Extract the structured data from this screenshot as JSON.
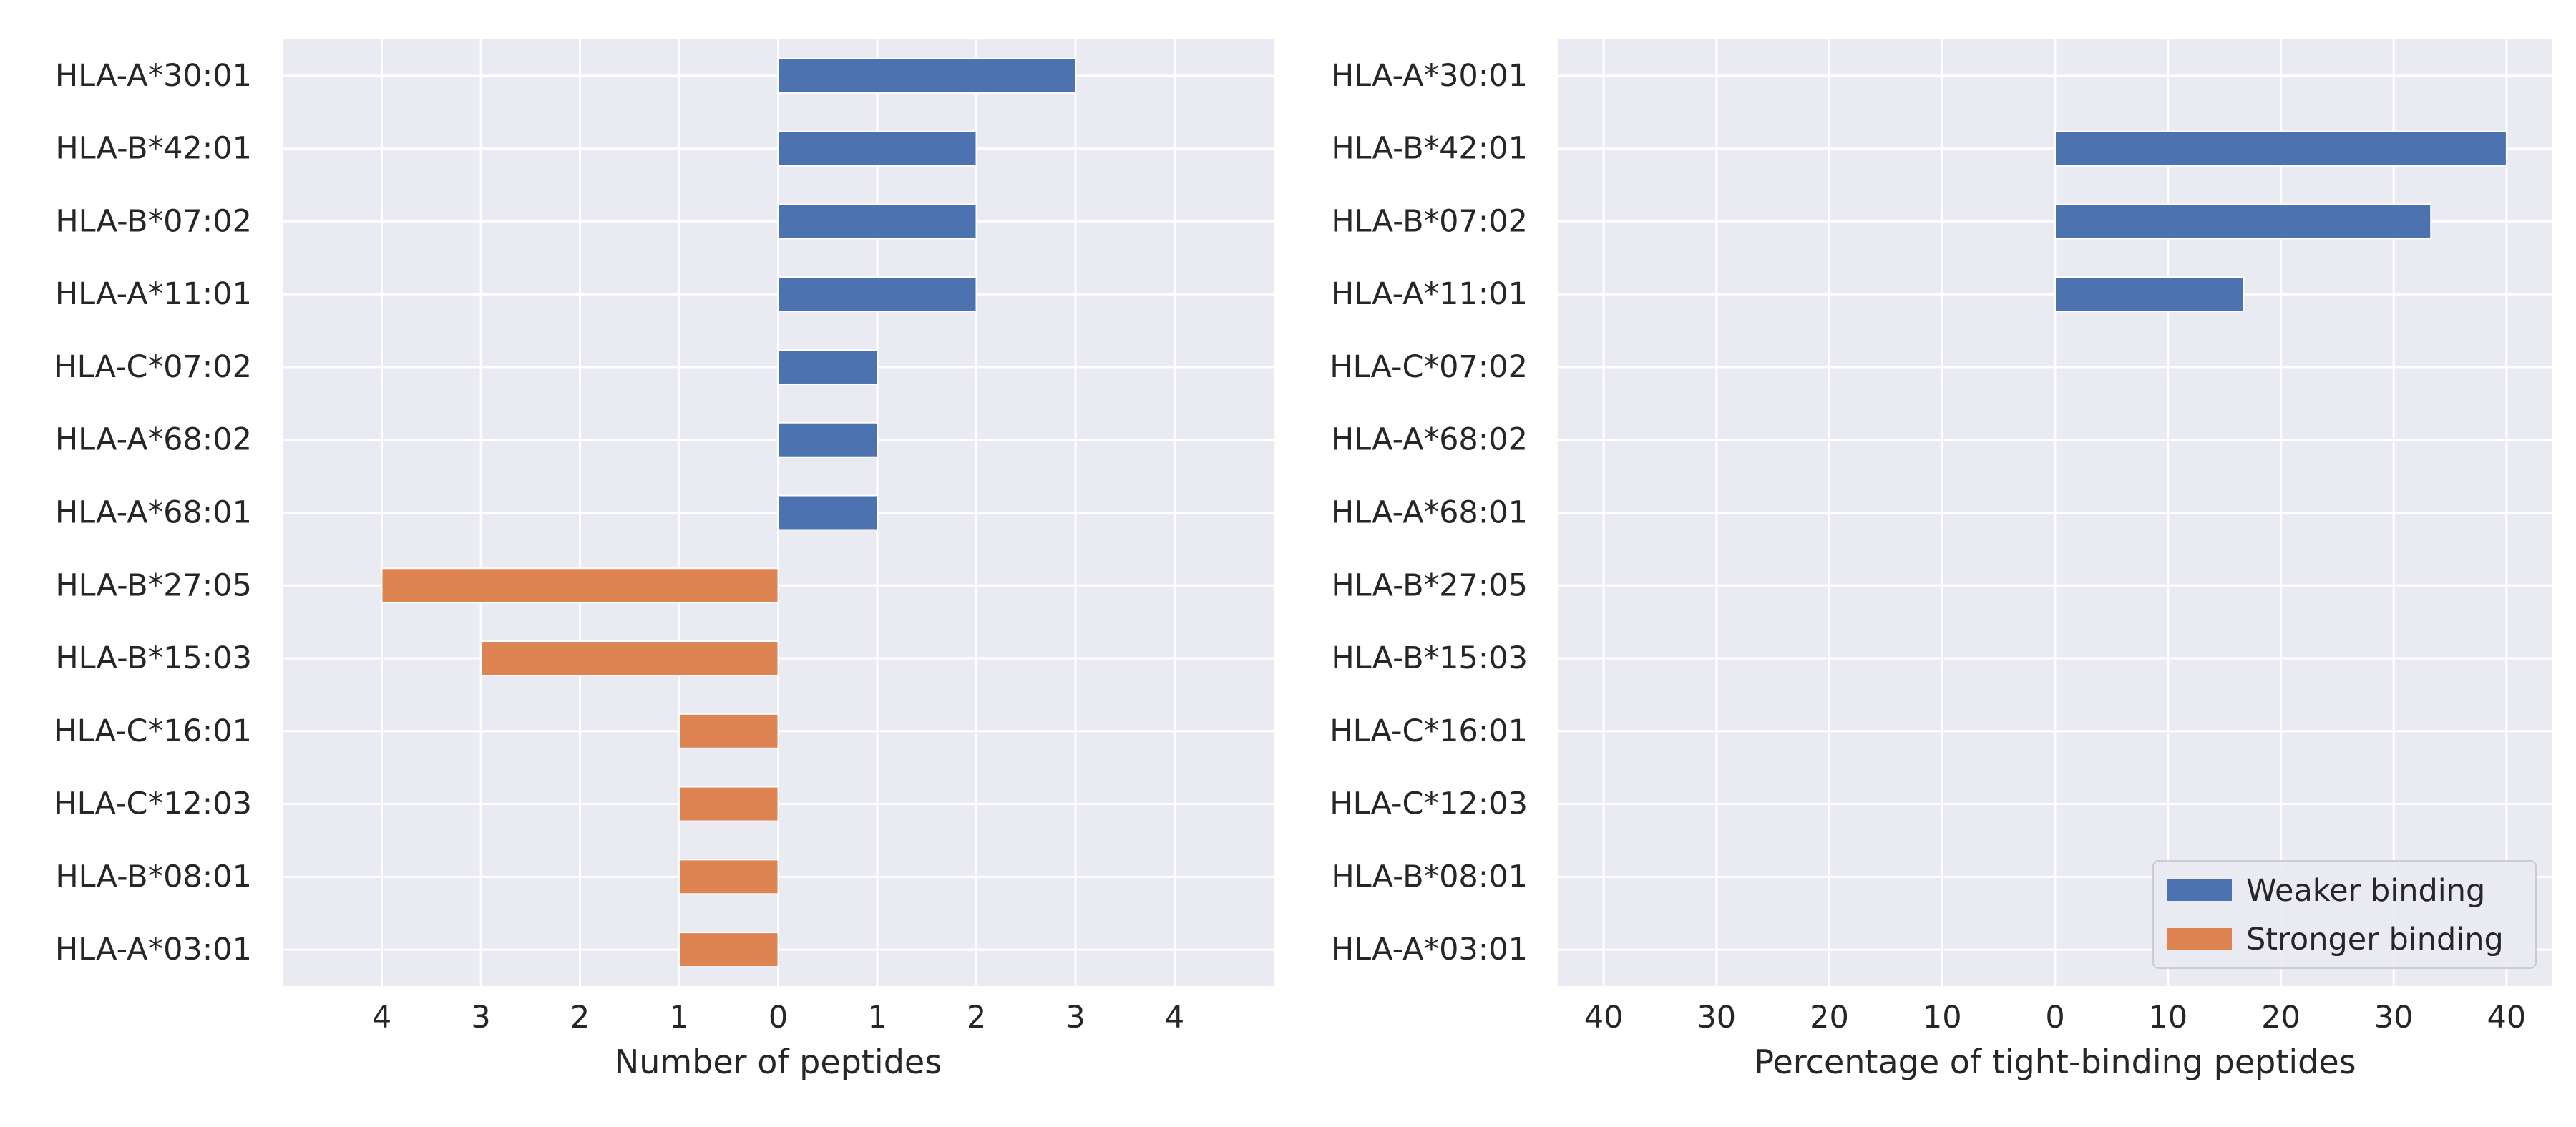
{
  "colors": {
    "background": "#EAEAF2",
    "grid": "#FFFFFF",
    "weaker": "#4C72B0",
    "stronger": "#DD8452",
    "text": "#262626"
  },
  "chart_data": [
    {
      "type": "bar",
      "orientation": "horizontal",
      "xlabel": "Number of peptides",
      "xlim": [
        -5,
        5
      ],
      "xticks": [
        -4,
        -3,
        -2,
        -1,
        0,
        1,
        2,
        3,
        4
      ],
      "xtick_labels": [
        "4",
        "3",
        "2",
        "1",
        "0",
        "1",
        "2",
        "3",
        "4"
      ],
      "categories": [
        "HLA-A*30:01",
        "HLA-B*42:01",
        "HLA-B*07:02",
        "HLA-A*11:01",
        "HLA-C*07:02",
        "HLA-A*68:02",
        "HLA-A*68:01",
        "HLA-B*27:05",
        "HLA-B*15:03",
        "HLA-C*16:01",
        "HLA-C*12:03",
        "HLA-B*08:01",
        "HLA-A*03:01"
      ],
      "series": [
        {
          "name": "Weaker binding",
          "color_key": "weaker",
          "values": [
            3,
            2,
            2,
            2,
            1,
            1,
            1,
            0,
            0,
            0,
            0,
            0,
            0
          ]
        },
        {
          "name": "Stronger binding",
          "color_key": "stronger",
          "values": [
            0,
            0,
            0,
            0,
            0,
            0,
            0,
            -4,
            -3,
            -1,
            -1,
            -1,
            -1
          ]
        }
      ],
      "grid": true,
      "legend": null
    },
    {
      "type": "bar",
      "orientation": "horizontal",
      "xlabel": "Percentage of tight-binding peptides",
      "xlim": [
        -44,
        44
      ],
      "xticks": [
        -40,
        -30,
        -20,
        -10,
        0,
        10,
        20,
        30,
        40
      ],
      "xtick_labels": [
        "40",
        "30",
        "20",
        "10",
        "0",
        "10",
        "20",
        "30",
        "40"
      ],
      "categories": [
        "HLA-A*30:01",
        "HLA-B*42:01",
        "HLA-B*07:02",
        "HLA-A*11:01",
        "HLA-C*07:02",
        "HLA-A*68:02",
        "HLA-A*68:01",
        "HLA-B*27:05",
        "HLA-B*15:03",
        "HLA-C*16:01",
        "HLA-C*12:03",
        "HLA-B*08:01",
        "HLA-A*03:01"
      ],
      "series": [
        {
          "name": "Weaker binding",
          "color_key": "weaker",
          "values": [
            0,
            40,
            33.3,
            16.7,
            0,
            0,
            0,
            0,
            0,
            0,
            0,
            0,
            0
          ]
        },
        {
          "name": "Stronger binding",
          "color_key": "stronger",
          "values": [
            0,
            0,
            0,
            0,
            0,
            0,
            0,
            0,
            0,
            0,
            0,
            0,
            0
          ]
        }
      ],
      "grid": true,
      "legend": {
        "placement": "lower-right",
        "entries": [
          "Weaker binding",
          "Stronger binding"
        ]
      }
    }
  ]
}
